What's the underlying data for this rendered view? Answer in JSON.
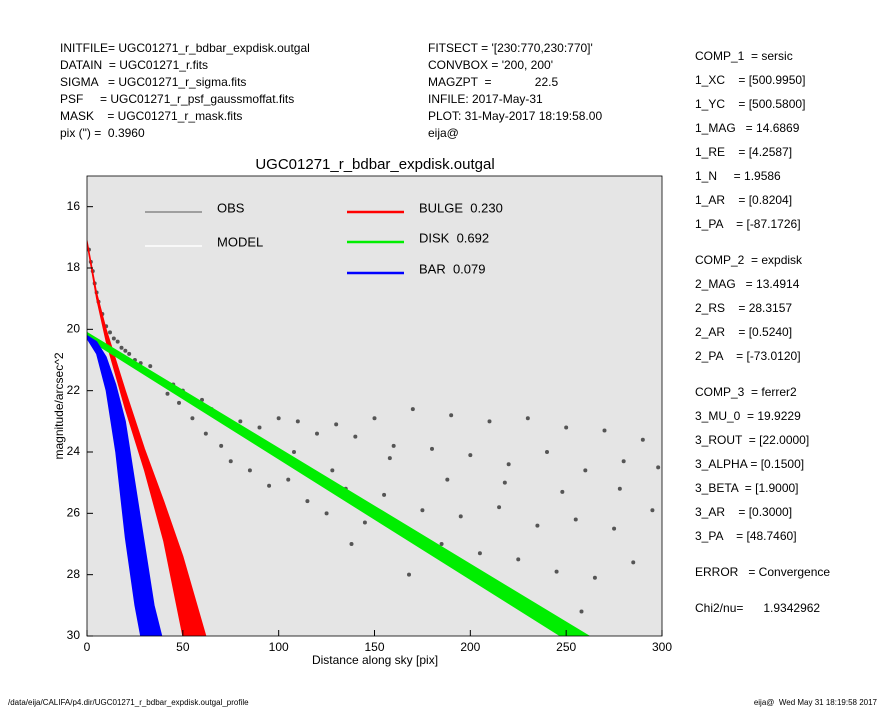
{
  "header": {
    "left": [
      "INITFILE= UGC01271_r_bdbar_expdisk.outgal",
      "DATAIN  = UGC01271_r.fits",
      "SIGMA   = UGC01271_r_sigma.fits",
      "PSF     = UGC01271_r_psf_gaussmoffat.fits",
      "MASK    = UGC01271_r_mask.fits",
      "pix (\") =  0.3960"
    ],
    "middle": [
      "FITSECT = '[230:770,230:770]'",
      "CONVBOX = '200, 200'",
      "MAGZPT  =             22.5",
      "INFILE: 2017-May-31",
      "PLOT: 31-May-2017 18:19:58.00",
      "eija@"
    ]
  },
  "parameters": [
    [
      "COMP_1  = sersic",
      "1_XC    = [500.9950]",
      "1_YC    = [500.5800]",
      "1_MAG   = 14.6869",
      "1_RE    = [4.2587]",
      "1_N     = 1.9586",
      "1_AR    = [0.8204]",
      "1_PA    = [-87.1726]"
    ],
    [
      "COMP_2  = expdisk",
      "2_MAG   = 13.4914",
      "2_RS    = 28.3157",
      "2_AR    = [0.5240]",
      "2_PA    = [-73.0120]"
    ],
    [
      "COMP_3  = ferrer2",
      "3_MU_0  = 19.9229",
      "3_ROUT  = [22.0000]",
      "3_ALPHA = [0.1500]",
      "3_BETA  = [1.9000]",
      "3_AR    = [0.3000]",
      "3_PA    = [48.7460]"
    ],
    [
      "ERROR   = Convergence"
    ],
    [
      "Chi2/nu=      1.9342962"
    ]
  ],
  "footer": {
    "left": "/data/eija/CALIFA/p4.dir/UGC01271_r_bdbar_expdisk.outgal_profile",
    "right": "eija@  Wed May 31 18:19:58 2017"
  },
  "chart_data": {
    "type": "scatter",
    "title": "UGC01271_r_bdbar_expdisk.outgal",
    "xlabel": "Distance along sky [pix]",
    "ylabel": "magnitude/arcsec^2",
    "xlim": [
      0,
      300
    ],
    "ylim": [
      30,
      15
    ],
    "xticks": [
      0,
      50,
      100,
      150,
      200,
      250,
      300
    ],
    "yticks": [
      16,
      18,
      20,
      22,
      24,
      26,
      28,
      30
    ],
    "series": [
      {
        "name": "OBS",
        "color": "#555555",
        "x": [
          1,
          2,
          3,
          4,
          5,
          6,
          8,
          10,
          12,
          14,
          16,
          18,
          20,
          22,
          25,
          28,
          30,
          33,
          36,
          40,
          42,
          45,
          48,
          50,
          55,
          60,
          62,
          65,
          70,
          72,
          75,
          80,
          85,
          90,
          95,
          100,
          105,
          110,
          115,
          120,
          125,
          130,
          135,
          140,
          145,
          150,
          155,
          160,
          165,
          170,
          175,
          180,
          185,
          190,
          195,
          200,
          205,
          210,
          215,
          220,
          225,
          230,
          235,
          240,
          245,
          250,
          255,
          260,
          265,
          270,
          275,
          280,
          285,
          290,
          295,
          298,
          108,
          128,
          158,
          188,
          218,
          248,
          278,
          138,
          168,
          228,
          258
        ],
        "values": [
          17.4,
          17.8,
          18.1,
          18.5,
          18.8,
          19.1,
          19.5,
          19.9,
          20.1,
          20.3,
          20.4,
          20.6,
          20.7,
          20.8,
          21.0,
          21.1,
          21.3,
          21.2,
          21.6,
          21.7,
          22.1,
          21.8,
          22.4,
          22.0,
          22.9,
          22.3,
          23.4,
          22.6,
          23.8,
          22.9,
          24.3,
          23.0,
          24.6,
          23.2,
          25.1,
          22.9,
          24.9,
          23.0,
          25.6,
          23.4,
          26.0,
          23.1,
          25.2,
          23.5,
          26.3,
          22.9,
          25.4,
          23.8,
          26.6,
          22.6,
          25.9,
          23.9,
          27.0,
          22.8,
          26.1,
          24.1,
          27.3,
          23.0,
          25.8,
          24.4,
          27.5,
          22.9,
          26.4,
          24.0,
          27.9,
          23.2,
          26.2,
          24.6,
          28.1,
          23.3,
          26.5,
          24.3,
          27.6,
          23.6,
          25.9,
          24.5,
          24.0,
          24.6,
          24.2,
          24.9,
          25.0,
          25.3,
          25.2,
          27.0,
          28.0,
          28.8,
          29.2
        ]
      },
      {
        "name": "MODEL",
        "color": "#ffffff"
      },
      {
        "name": "BULGE  0.230",
        "color": "#ff0000",
        "edges": [
          {
            "x": [
              0,
              5,
              10,
              20,
              30,
              40,
              50
            ],
            "values": [
              17.2,
              19.0,
              20.4,
              22.6,
              24.6,
              26.9,
              30.0
            ]
          },
          {
            "x": [
              0,
              5,
              10,
              20,
              30,
              40,
              50,
              62
            ],
            "values": [
              17.1,
              18.8,
              20.0,
              22.0,
              23.9,
              25.6,
              27.4,
              30.0
            ]
          }
        ]
      },
      {
        "name": "DISK  0.692",
        "color": "#00ee00",
        "edges": [
          {
            "x": [
              0,
              247
            ],
            "values": [
              20.3,
              30.0
            ]
          },
          {
            "x": [
              0,
              262
            ],
            "values": [
              20.1,
              30.0
            ]
          }
        ]
      },
      {
        "name": "BAR  0.079",
        "color": "#0000ff",
        "edges": [
          {
            "x": [
              0,
              5,
              10,
              15,
              20,
              25,
              28
            ],
            "values": [
              20.3,
              20.8,
              22.0,
              24.0,
              26.8,
              29.0,
              30.0
            ]
          },
          {
            "x": [
              0,
              5,
              10,
              15,
              20,
              25,
              30,
              35,
              39
            ],
            "values": [
              20.2,
              20.4,
              20.9,
              21.8,
              23.0,
              25.0,
              27.0,
              29.0,
              30.0
            ]
          }
        ]
      }
    ]
  }
}
